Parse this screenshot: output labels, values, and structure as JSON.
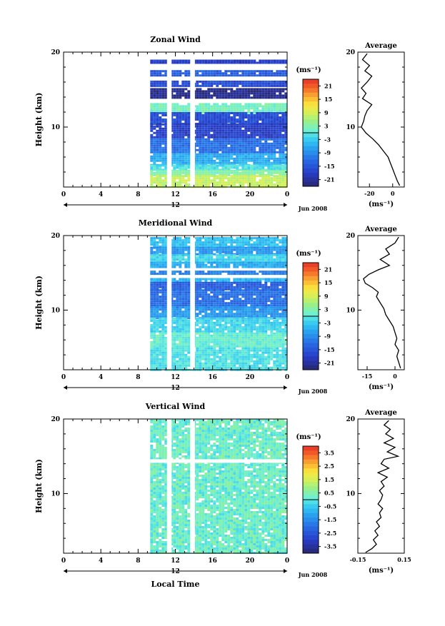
{
  "common": {
    "xlabel": "Local Time",
    "ylabel": "Height (km)",
    "date_label": "Jun 2008",
    "day_label": "12",
    "x_ticks": [
      "0",
      "4",
      "8",
      "12",
      "16",
      "20",
      "0"
    ],
    "y_ticks": [
      "20",
      "10"
    ],
    "ylim": [
      2,
      20
    ],
    "xlim": [
      0,
      24
    ],
    "units_label": "(ms⁻¹)"
  },
  "chart_data": [
    {
      "type": "heatmap",
      "title": "Zonal Wind",
      "x_range_hours": [
        0,
        24
      ],
      "data_start_hour": 9.3,
      "data_end_hour": 24,
      "colorbar_ticks": [
        "21",
        "15",
        "9",
        "3",
        "-3",
        "-9",
        "-15",
        "-21"
      ],
      "colorbar_range": [
        -24,
        24
      ],
      "bands": [
        {
          "height_km": [
            18.6,
            19.0
          ],
          "value": -18
        },
        {
          "height_km": [
            17.0,
            17.6
          ],
          "value": -14
        },
        {
          "height_km": [
            15.6,
            16.2
          ],
          "value": -16
        },
        {
          "height_km": [
            13.8,
            15.2
          ],
          "value": -22
        },
        {
          "height_km": [
            12.0,
            13.2
          ],
          "value": 2
        },
        {
          "height_km": [
            10.5,
            12.0
          ],
          "value": -16
        },
        {
          "height_km": [
            8.5,
            10.5
          ],
          "value": -18
        },
        {
          "height_km": [
            6.5,
            8.5
          ],
          "value": -12
        },
        {
          "height_km": [
            5.0,
            6.5
          ],
          "value": -6
        },
        {
          "height_km": [
            4.3,
            5.0
          ],
          "value": -1
        },
        {
          "height_km": [
            3.6,
            4.3
          ],
          "value": 3
        },
        {
          "height_km": [
            2.0,
            3.6
          ],
          "value": 8
        }
      ],
      "average": {
        "title": "Average",
        "xlabel": "(ms⁻¹)",
        "x_ticks": [
          "-20",
          "0"
        ],
        "xlim": [
          -30,
          10
        ],
        "height_km": [
          19.8,
          19.0,
          18.2,
          17.5,
          16.8,
          16.0,
          15.2,
          14.5,
          13.8,
          13.0,
          12.2,
          11.5,
          10.8,
          10.0,
          9.2,
          8.4,
          7.6,
          6.8,
          6.0,
          5.2,
          4.4,
          3.6,
          2.8,
          2.2
        ],
        "values": [
          -22,
          -26,
          -20,
          -24,
          -18,
          -22,
          -27,
          -23,
          -26,
          -18,
          -22,
          -24,
          -25,
          -27,
          -23,
          -17,
          -12,
          -8,
          -4,
          -2,
          0,
          2,
          4,
          6
        ]
      }
    },
    {
      "type": "heatmap",
      "title": "Meridional Wind",
      "x_range_hours": [
        0,
        24
      ],
      "data_start_hour": 9.3,
      "data_end_hour": 24,
      "colorbar_ticks": [
        "21",
        "15",
        "9",
        "3",
        "-3",
        "-9",
        "-15",
        "-21"
      ],
      "colorbar_range": [
        -24,
        24
      ],
      "bands": [
        {
          "height_km": [
            18.5,
            19.8
          ],
          "value": -4
        },
        {
          "height_km": [
            17.5,
            18.5
          ],
          "value": -8
        },
        {
          "height_km": [
            16.5,
            17.5
          ],
          "value": -2
        },
        {
          "height_km": [
            15.8,
            16.5
          ],
          "value": -6
        },
        {
          "height_km": [
            14.8,
            15.3
          ],
          "value": -10
        },
        {
          "height_km": [
            13.8,
            14.3
          ],
          "value": -5
        },
        {
          "height_km": [
            12.8,
            13.8
          ],
          "value": -14
        },
        {
          "height_km": [
            10.5,
            12.8
          ],
          "value": -12
        },
        {
          "height_km": [
            9.0,
            10.5
          ],
          "value": -8
        },
        {
          "height_km": [
            7.0,
            9.0
          ],
          "value": -2
        },
        {
          "height_km": [
            5.0,
            7.0
          ],
          "value": 1
        },
        {
          "height_km": [
            2.0,
            5.0
          ],
          "value": -1
        }
      ],
      "average": {
        "title": "Average",
        "xlabel": "(ms⁻¹)",
        "x_ticks": [
          "-15",
          "0"
        ],
        "xlim": [
          -20,
          5
        ],
        "height_km": [
          19.8,
          19.0,
          18.2,
          17.5,
          16.8,
          16.0,
          15.4,
          14.8,
          14.2,
          13.6,
          13.0,
          12.4,
          11.8,
          11.0,
          10.2,
          9.4,
          8.6,
          7.8,
          7.0,
          6.2,
          5.4,
          4.6,
          3.8,
          3.0,
          2.2
        ],
        "values": [
          2,
          0,
          -5,
          -3,
          -8,
          -3,
          -9,
          -14,
          -17,
          -16,
          -12,
          -9,
          -10,
          -8,
          -6,
          -5,
          -3,
          -1,
          0,
          1,
          0,
          2,
          1,
          2,
          3
        ]
      }
    },
    {
      "type": "heatmap",
      "title": "Vertical Wind",
      "x_range_hours": [
        0,
        24
      ],
      "data_start_hour": 9.3,
      "data_end_hour": 24,
      "colorbar_ticks": [
        "3.5",
        "2.5",
        "1.5",
        "0.5",
        "-0.5",
        "-1.5",
        "-2.5",
        "-3.5"
      ],
      "colorbar_range": [
        -4,
        4
      ],
      "bands": [
        {
          "height_km": [
            2.0,
            20.0
          ],
          "value": 0.2
        }
      ],
      "average": {
        "title": "Average",
        "xlabel": "(ms⁻¹)",
        "x_ticks": [
          "-0.15",
          "0.15"
        ],
        "xlim": [
          -0.15,
          0.15
        ],
        "height_km": [
          19.8,
          19.2,
          18.6,
          18.0,
          17.4,
          16.8,
          16.2,
          15.6,
          15.0,
          14.6,
          14.0,
          13.4,
          12.8,
          12.2,
          11.6,
          11.0,
          10.4,
          9.8,
          9.2,
          8.6,
          8.0,
          7.4,
          6.8,
          6.2,
          5.6,
          5.0,
          4.4,
          3.8,
          3.2,
          2.6,
          2.1
        ],
        "values": [
          0.05,
          0.02,
          0.06,
          0.03,
          0.08,
          0.02,
          0.09,
          0.04,
          0.11,
          0.02,
          0.0,
          0.05,
          -0.02,
          0.04,
          0.0,
          0.02,
          -0.01,
          0.01,
          0.0,
          -0.02,
          0.01,
          -0.01,
          0.0,
          -0.03,
          -0.01,
          -0.04,
          -0.02,
          -0.05,
          -0.03,
          -0.06,
          -0.1
        ]
      }
    }
  ]
}
